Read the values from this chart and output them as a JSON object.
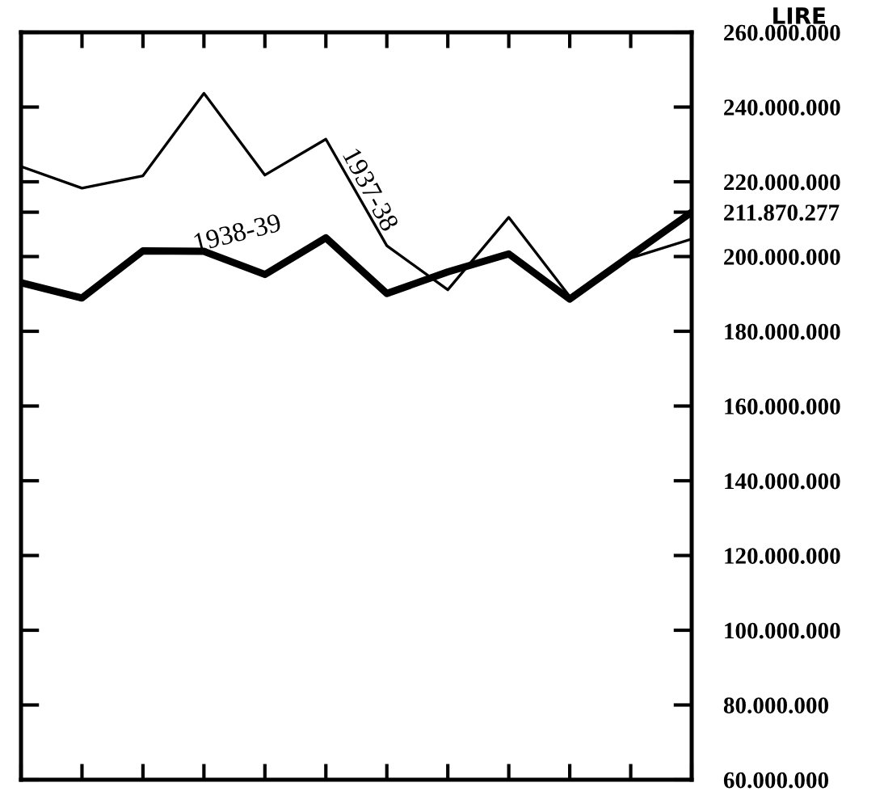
{
  "chart_data": {
    "type": "line",
    "ylabel": "LIRE",
    "categories": [
      null,
      null,
      null,
      null,
      null,
      null,
      null,
      null,
      null,
      null,
      null,
      null
    ],
    "series": [
      {
        "name": "1937-38",
        "color": "#000000",
        "values": [
          224100000.0,
          218300000.0,
          221600000.0,
          243700000.0,
          221800000.0,
          231400000.0,
          202900000.0,
          191100000.0,
          210500000.0,
          189300000.0,
          199600000.0,
          204700000.0
        ]
      },
      {
        "name": "1938-39",
        "color": "#000000",
        "values": [
          193000000.0,
          188900000.0,
          201500000.0,
          201400000.0,
          195200000.0,
          205000000.0,
          190100000.0,
          195900000.0,
          200700000.0,
          188600000.0,
          200300000.0,
          211870277
        ]
      }
    ],
    "ylim": [
      60000000,
      260000000
    ],
    "yticks": [
      {
        "value": 60000000,
        "label": "60.000.000"
      },
      {
        "value": 80000000,
        "label": "80.000.000"
      },
      {
        "value": 100000000,
        "label": "100.000.000"
      },
      {
        "value": 120000000,
        "label": "120.000.000"
      },
      {
        "value": 140000000,
        "label": "140.000.000"
      },
      {
        "value": 160000000,
        "label": "160.000.000"
      },
      {
        "value": 180000000,
        "label": "180.000.000"
      },
      {
        "value": 200000000,
        "label": "200.000.000"
      },
      {
        "value": 211870277,
        "label": "211.870.277"
      },
      {
        "value": 220000000,
        "label": "220.000.000"
      },
      {
        "value": 240000000,
        "label": "240.000.000"
      },
      {
        "value": 260000000,
        "label": "260.000.000"
      }
    ],
    "tick_labels": "y",
    "legend": false,
    "grid": false,
    "marker": "none",
    "line_style": "solid"
  }
}
